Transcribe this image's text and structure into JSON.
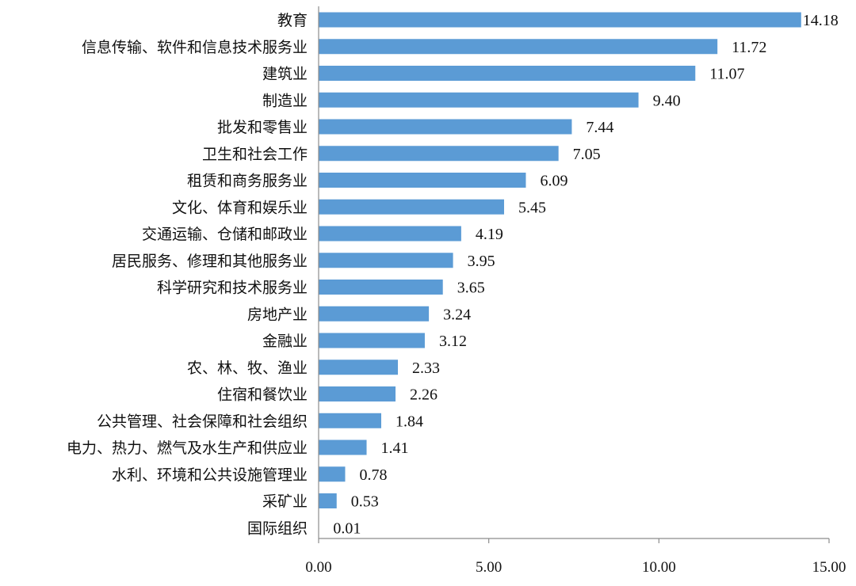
{
  "chart_data": {
    "type": "bar",
    "orientation": "horizontal",
    "categories": [
      "教育",
      "信息传输、软件和信息技术服务业",
      "建筑业",
      "制造业",
      "批发和零售业",
      "卫生和社会工作",
      "租赁和商务服务业",
      "文化、体育和娱乐业",
      "交通运输、仓储和邮政业",
      "居民服务、修理和其他服务业",
      "科学研究和技术服务业",
      "房地产业",
      "金融业",
      "农、林、牧、渔业",
      "住宿和餐饮业",
      "公共管理、社会保障和社会组织",
      "电力、热力、燃气及水生产和供应业",
      "水利、环境和公共设施管理业",
      "采矿业",
      "国际组织"
    ],
    "values": [
      14.18,
      11.72,
      11.07,
      9.4,
      7.44,
      7.05,
      6.09,
      5.45,
      4.19,
      3.95,
      3.65,
      3.24,
      3.12,
      2.33,
      2.26,
      1.84,
      1.41,
      0.78,
      0.53,
      0.01
    ],
    "value_labels": [
      "14.18",
      "11.72",
      "11.07",
      "9.40",
      "7.44",
      "7.05",
      "6.09",
      "5.45",
      "4.19",
      "3.95",
      "3.65",
      "3.24",
      "3.12",
      "2.33",
      "2.26",
      "1.84",
      "1.41",
      "0.78",
      "0.53",
      "0.01"
    ],
    "xlim": [
      0,
      15
    ],
    "x_ticks": [
      0,
      5,
      10,
      15
    ],
    "x_tick_labels": [
      "0.00",
      "5.00",
      "10.00",
      "15.00"
    ],
    "title": "",
    "xlabel": "",
    "ylabel": "",
    "grid": false,
    "legend": "none",
    "bar_color": "#5b9bd5",
    "axis_color": "#8c8c8c"
  }
}
